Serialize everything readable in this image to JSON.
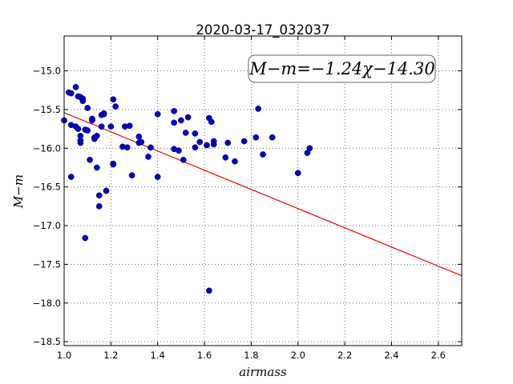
{
  "chart_data": {
    "type": "scatter",
    "title": "2020-03-17_032037",
    "xlabel": "airmass",
    "ylabel": "M−m",
    "xlim": [
      1.0,
      2.7
    ],
    "ylim": [
      -18.55,
      -14.55
    ],
    "y_inverted": true,
    "grid": true,
    "x_ticks": [
      1.0,
      1.2,
      1.4,
      1.6,
      1.8,
      2.0,
      2.2,
      2.4,
      2.6
    ],
    "x_tick_labels": [
      "1.0",
      "1.2",
      "1.4",
      "1.6",
      "1.8",
      "2.0",
      "2.2",
      "2.4",
      "2.6"
    ],
    "y_ticks": [
      -15.0,
      -15.5,
      -16.0,
      -16.5,
      -17.0,
      -17.5,
      -18.0,
      -18.5
    ],
    "y_tick_labels": [
      "−15.0",
      "−15.5",
      "−16.0",
      "−16.5",
      "−17.0",
      "−17.5",
      "−18.0",
      "−18.5"
    ],
    "annotation": "M−m=−1.24χ−14.30",
    "fit_line": {
      "slope": -1.24,
      "intercept": -14.3,
      "color": "#ff0000"
    },
    "point_color": "#0000cc",
    "points": [
      [
        1.0,
        -15.64
      ],
      [
        1.02,
        -15.28
      ],
      [
        1.03,
        -15.29
      ],
      [
        1.03,
        -15.7
      ],
      [
        1.03,
        -16.37
      ],
      [
        1.05,
        -15.72
      ],
      [
        1.05,
        -15.21
      ],
      [
        1.06,
        -15.33
      ],
      [
        1.06,
        -15.75
      ],
      [
        1.07,
        -15.34
      ],
      [
        1.07,
        -15.93
      ],
      [
        1.07,
        -15.9
      ],
      [
        1.07,
        -15.84
      ],
      [
        1.08,
        -15.36
      ],
      [
        1.08,
        -15.39
      ],
      [
        1.09,
        -15.76
      ],
      [
        1.09,
        -17.16
      ],
      [
        1.1,
        -15.48
      ],
      [
        1.1,
        -15.77
      ],
      [
        1.11,
        -16.15
      ],
      [
        1.12,
        -15.62
      ],
      [
        1.12,
        -15.64
      ],
      [
        1.13,
        -15.88
      ],
      [
        1.13,
        -15.86
      ],
      [
        1.14,
        -15.84
      ],
      [
        1.14,
        -16.25
      ],
      [
        1.15,
        -16.61
      ],
      [
        1.15,
        -16.75
      ],
      [
        1.16,
        -15.72
      ],
      [
        1.16,
        -15.57
      ],
      [
        1.17,
        -15.55
      ],
      [
        1.17,
        -15.56
      ],
      [
        1.18,
        -16.55
      ],
      [
        1.2,
        -15.72
      ],
      [
        1.21,
        -16.2
      ],
      [
        1.21,
        -16.21
      ],
      [
        1.21,
        -15.37
      ],
      [
        1.22,
        -15.46
      ],
      [
        1.25,
        -15.98
      ],
      [
        1.26,
        -15.72
      ],
      [
        1.27,
        -15.99
      ],
      [
        1.28,
        -15.71
      ],
      [
        1.29,
        -16.35
      ],
      [
        1.32,
        -15.85
      ],
      [
        1.32,
        -15.93
      ],
      [
        1.33,
        -15.92
      ],
      [
        1.36,
        -16.11
      ],
      [
        1.37,
        -15.99
      ],
      [
        1.4,
        -15.56
      ],
      [
        1.4,
        -16.37
      ],
      [
        1.47,
        -15.52
      ],
      [
        1.47,
        -15.67
      ],
      [
        1.47,
        -16.01
      ],
      [
        1.49,
        -16.03
      ],
      [
        1.5,
        -15.64
      ],
      [
        1.51,
        -16.15
      ],
      [
        1.52,
        -15.8
      ],
      [
        1.53,
        -15.6
      ],
      [
        1.56,
        -15.99
      ],
      [
        1.56,
        -15.81
      ],
      [
        1.58,
        -15.92
      ],
      [
        1.61,
        -15.96
      ],
      [
        1.62,
        -15.61
      ],
      [
        1.62,
        -17.84
      ],
      [
        1.63,
        -15.66
      ],
      [
        1.64,
        -15.91
      ],
      [
        1.64,
        -15.95
      ],
      [
        1.69,
        -16.12
      ],
      [
        1.7,
        -15.93
      ],
      [
        1.73,
        -16.17
      ],
      [
        1.77,
        -15.91
      ],
      [
        1.82,
        -15.86
      ],
      [
        1.83,
        -15.49
      ],
      [
        1.85,
        -16.08
      ],
      [
        1.89,
        -15.86
      ],
      [
        2.0,
        -16.32
      ],
      [
        2.04,
        -16.06
      ],
      [
        2.05,
        -16.0
      ]
    ]
  }
}
